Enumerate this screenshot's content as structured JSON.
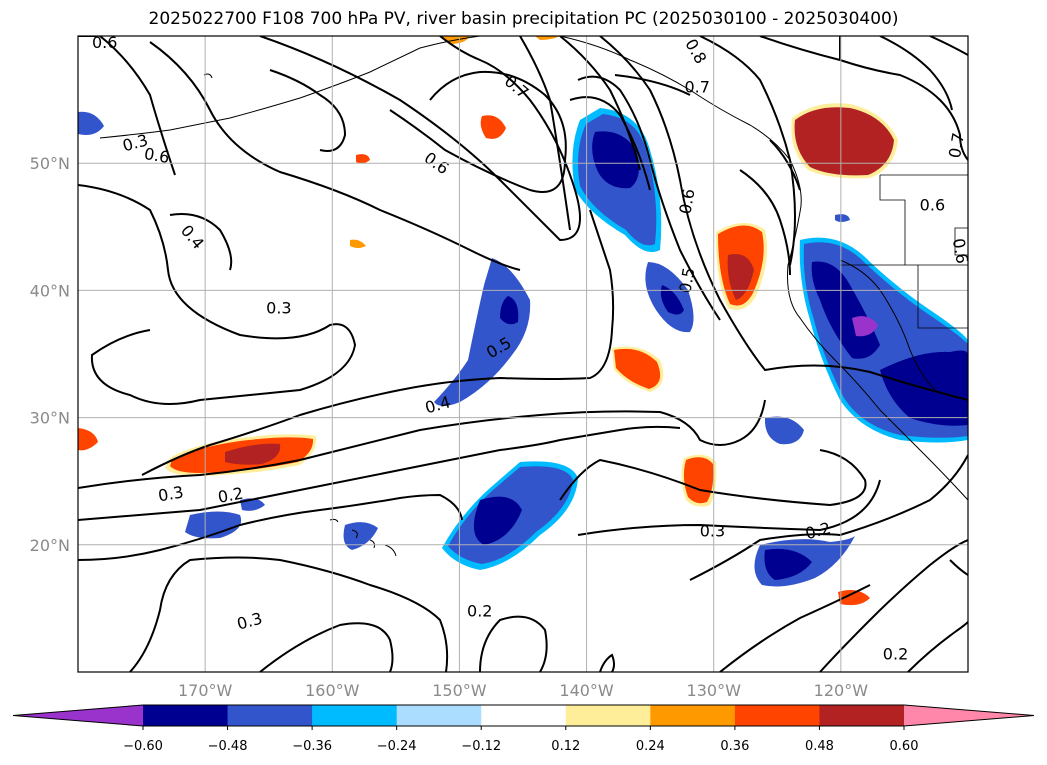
{
  "title": "2025022700 F108 700 hPa PV, river basin precipitation PC (2025030100 - 2025030400)",
  "map": {
    "lon_range": [
      -180,
      -110
    ],
    "lat_range": [
      10,
      60
    ],
    "lon_ticks": [
      {
        "value": -170,
        "label": "170°W"
      },
      {
        "value": -160,
        "label": "160°W"
      },
      {
        "value": -150,
        "label": "150°W"
      },
      {
        "value": -140,
        "label": "140°W"
      },
      {
        "value": -130,
        "label": "130°W"
      },
      {
        "value": -120,
        "label": "120°W"
      }
    ],
    "lat_ticks": [
      {
        "value": 20,
        "label": "20°N"
      },
      {
        "value": 30,
        "label": "30°N"
      },
      {
        "value": 40,
        "label": "40°N"
      },
      {
        "value": 50,
        "label": "50°N"
      }
    ],
    "gridlines": true
  },
  "colorbar": {
    "extend": "both",
    "boundaries": [
      -0.6,
      -0.48,
      -0.36,
      -0.24,
      -0.12,
      0.12,
      0.24,
      0.36,
      0.48,
      0.6
    ],
    "tick_labels": [
      "−0.60",
      "−0.48",
      "−0.36",
      "−0.24",
      "−0.12",
      "0.12",
      "0.24",
      "0.36",
      "0.48",
      "0.60"
    ],
    "colors": [
      "#9933cc",
      "#000090",
      "#3355cc",
      "#00bbff",
      "#aaddff",
      "#ffffff",
      "#ffee99",
      "#ff9900",
      "#ff4400",
      "#b22222",
      "#ff88aa"
    ]
  },
  "contour_labels": [
    {
      "text": "0.6",
      "lon": -177.9,
      "lat": 59.5,
      "rot": 0
    },
    {
      "text": "0.3",
      "lon": -175.5,
      "lat": 51.6,
      "rot": -15
    },
    {
      "text": "0.6",
      "lon": -173.8,
      "lat": 50.6,
      "rot": 10
    },
    {
      "text": "0.4",
      "lon": -171.0,
      "lat": 44.2,
      "rot": 50
    },
    {
      "text": "0.7",
      "lon": -145.5,
      "lat": 56.0,
      "rot": 40
    },
    {
      "text": "0.6",
      "lon": -151.8,
      "lat": 50.0,
      "rot": 35
    },
    {
      "text": "0.3",
      "lon": -164.2,
      "lat": 38.6,
      "rot": 0
    },
    {
      "text": "0.5",
      "lon": -146.9,
      "lat": 35.5,
      "rot": -30
    },
    {
      "text": "0.4",
      "lon": -151.7,
      "lat": 31.0,
      "rot": -15
    },
    {
      "text": "0.3",
      "lon": -172.7,
      "lat": 24.0,
      "rot": -10
    },
    {
      "text": "0.2",
      "lon": -168.0,
      "lat": 23.9,
      "rot": -10
    },
    {
      "text": "0.3",
      "lon": -166.5,
      "lat": 14.0,
      "rot": -15
    },
    {
      "text": "0.2",
      "lon": -148.4,
      "lat": 14.8,
      "rot": 0
    },
    {
      "text": "0.3",
      "lon": -130.1,
      "lat": 21.1,
      "rot": 0
    },
    {
      "text": "0.2",
      "lon": -121.8,
      "lat": 21.1,
      "rot": -15
    },
    {
      "text": "0.2",
      "lon": -115.7,
      "lat": 11.4,
      "rot": 0
    },
    {
      "text": "0.6",
      "lon": -132.1,
      "lat": 47.0,
      "rot": -80
    },
    {
      "text": "0.5",
      "lon": -132.1,
      "lat": 40.8,
      "rot": -80
    },
    {
      "text": "0.7",
      "lon": -131.3,
      "lat": 56.0,
      "rot": 0
    },
    {
      "text": "0.8",
      "lon": -131.4,
      "lat": 58.8,
      "rot": 60
    },
    {
      "text": "0.7",
      "lon": -110.9,
      "lat": 51.4,
      "rot": -80
    },
    {
      "text": "0.6",
      "lon": -112.8,
      "lat": 46.7,
      "rot": 0
    },
    {
      "text": "0.6",
      "lon": -110.6,
      "lat": 43.1,
      "rot": 80
    }
  ]
}
